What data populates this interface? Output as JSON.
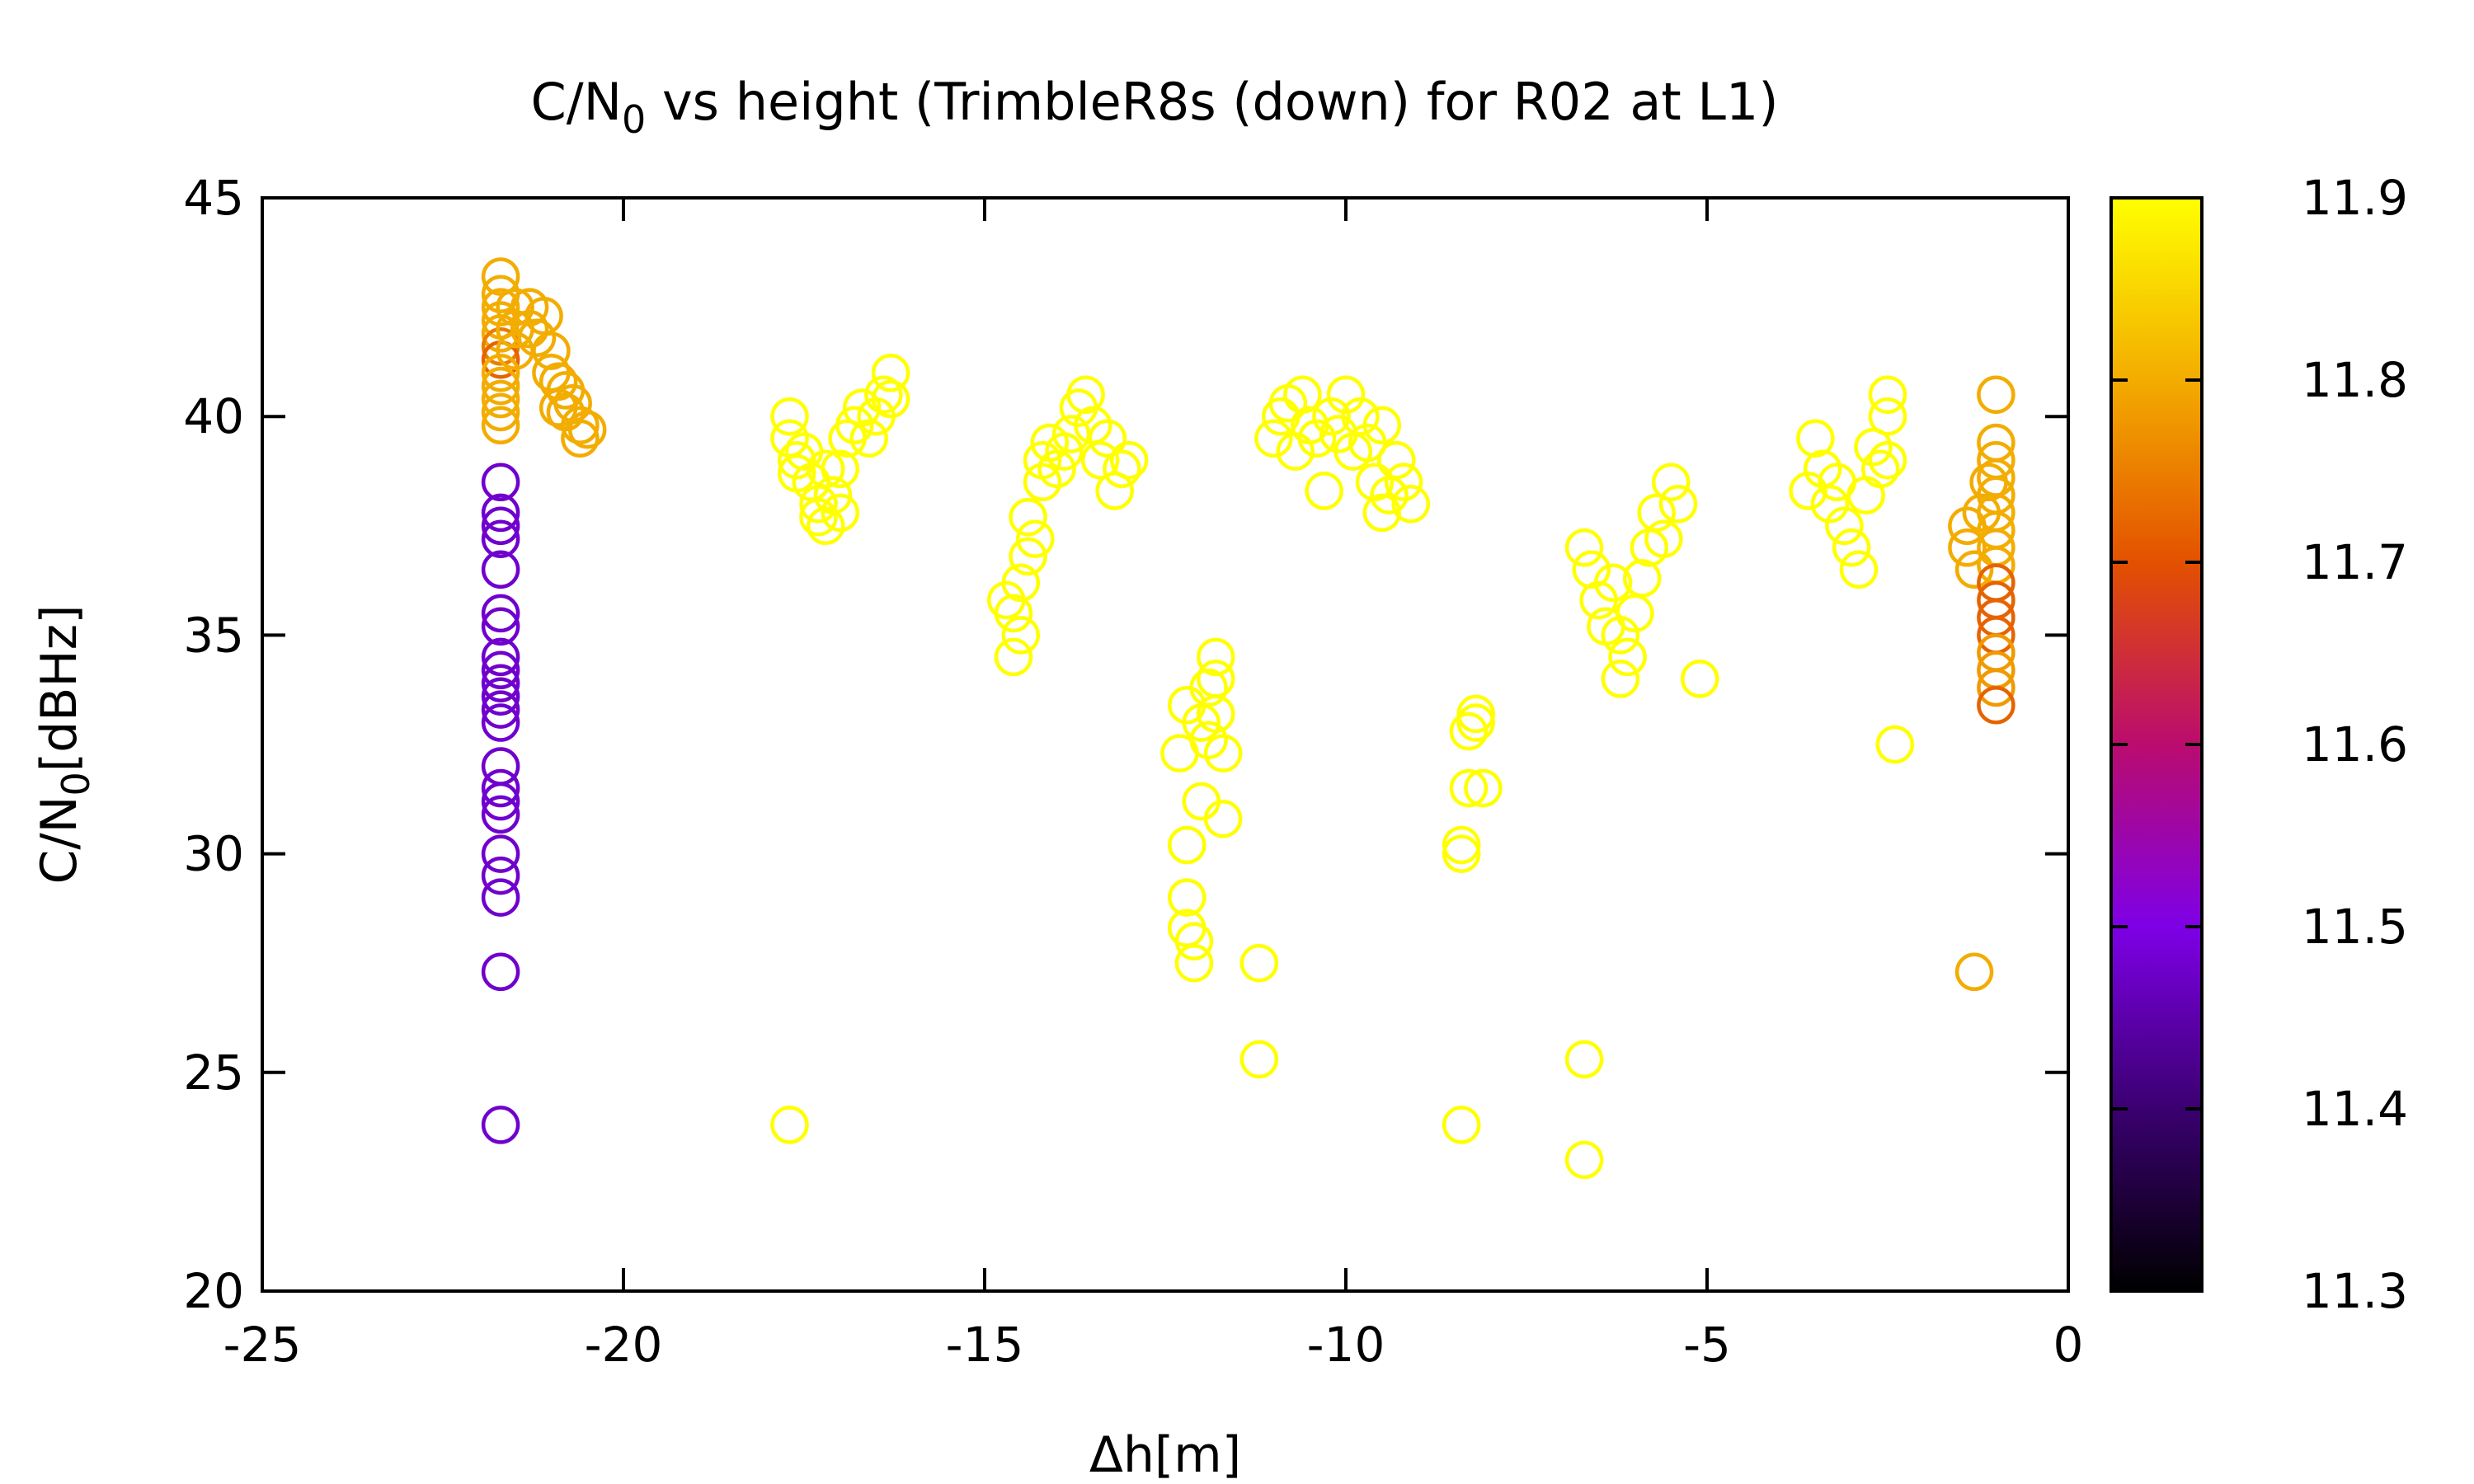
{
  "chart_data": {
    "type": "scatter",
    "title": "C/N0 vs height (TrimbleR8s (down) for R02 at L1)",
    "title_parts": {
      "before": "C/N",
      "sub": "0",
      "after": " vs height (TrimbleR8s (down) for R02 at L1)"
    },
    "xlabel": "Δh[m]",
    "ylabel": "C/N0[dBHz]",
    "ylabel_parts": {
      "before": "C/N",
      "sub": "0",
      "after": "[dBHz]"
    },
    "xlim": [
      -25,
      0
    ],
    "ylim": [
      20,
      45
    ],
    "xticks": [
      -25,
      -20,
      -15,
      -10,
      -5,
      0
    ],
    "yticks": [
      20,
      25,
      30,
      35,
      40,
      45
    ],
    "xtick_labels": [
      "-25",
      "-20",
      "-15",
      "-10",
      "-5",
      "0"
    ],
    "ytick_labels": [
      "20",
      "25",
      "30",
      "35",
      "40",
      "45"
    ],
    "colorbar": {
      "range": [
        11.3,
        11.9
      ],
      "ticks": [
        11.3,
        11.4,
        11.5,
        11.6,
        11.7,
        11.8,
        11.9
      ],
      "tick_labels": [
        "11.3",
        "11.4",
        "11.5",
        "11.6",
        "11.7",
        "11.8",
        "11.9"
      ],
      "colormap": "gnuplot",
      "colors": [
        "#000000",
        "#3a0070",
        "#7e00e6",
        "#ba0c6e",
        "#e35100",
        "#f3ac00",
        "#ffff00"
      ]
    },
    "marker": "open-circle",
    "grid": false,
    "legend": "none",
    "points": [
      [
        -21.7,
        43.2,
        11.8
      ],
      [
        -21.7,
        42.8,
        11.8
      ],
      [
        -21.7,
        42.5,
        11.8
      ],
      [
        -21.7,
        42.2,
        11.8
      ],
      [
        -21.7,
        41.9,
        11.8
      ],
      [
        -21.7,
        41.6,
        11.75
      ],
      [
        -21.7,
        41.3,
        11.72
      ],
      [
        -21.7,
        41.0,
        11.8
      ],
      [
        -21.7,
        40.7,
        11.8
      ],
      [
        -21.7,
        40.4,
        11.8
      ],
      [
        -21.7,
        40.1,
        11.8
      ],
      [
        -21.7,
        39.8,
        11.8
      ],
      [
        -21.5,
        42.5,
        11.8
      ],
      [
        -21.5,
        42.0,
        11.8
      ],
      [
        -21.5,
        41.5,
        11.8
      ],
      [
        -21.3,
        42.5,
        11.8
      ],
      [
        -21.3,
        42.0,
        11.8
      ],
      [
        -21.2,
        41.8,
        11.8
      ],
      [
        -21.1,
        42.3,
        11.8
      ],
      [
        -21.0,
        41.5,
        11.8
      ],
      [
        -21.0,
        41.0,
        11.8
      ],
      [
        -20.9,
        40.8,
        11.8
      ],
      [
        -20.9,
        40.2,
        11.8
      ],
      [
        -20.8,
        40.6,
        11.8
      ],
      [
        -20.8,
        40.1,
        11.8
      ],
      [
        -20.7,
        40.3,
        11.8
      ],
      [
        -20.6,
        39.8,
        11.8
      ],
      [
        -20.6,
        39.5,
        11.8
      ],
      [
        -20.5,
        39.7,
        11.8
      ],
      [
        -21.7,
        38.5,
        11.48
      ],
      [
        -21.7,
        37.8,
        11.48
      ],
      [
        -21.7,
        37.5,
        11.48
      ],
      [
        -21.7,
        37.2,
        11.48
      ],
      [
        -21.7,
        36.5,
        11.48
      ],
      [
        -21.7,
        35.5,
        11.48
      ],
      [
        -21.7,
        35.2,
        11.48
      ],
      [
        -21.7,
        34.5,
        11.48
      ],
      [
        -21.7,
        34.2,
        11.48
      ],
      [
        -21.7,
        33.9,
        11.48
      ],
      [
        -21.7,
        33.6,
        11.48
      ],
      [
        -21.7,
        33.3,
        11.48
      ],
      [
        -21.7,
        33.0,
        11.48
      ],
      [
        -21.7,
        32.0,
        11.48
      ],
      [
        -21.7,
        31.5,
        11.48
      ],
      [
        -21.7,
        31.2,
        11.48
      ],
      [
        -21.7,
        30.9,
        11.48
      ],
      [
        -21.7,
        30.0,
        11.48
      ],
      [
        -21.7,
        29.5,
        11.48
      ],
      [
        -21.7,
        29.0,
        11.48
      ],
      [
        -21.7,
        27.3,
        11.48
      ],
      [
        -21.7,
        23.8,
        11.48
      ],
      [
        -17.7,
        40.0,
        11.9
      ],
      [
        -17.7,
        39.5,
        11.9
      ],
      [
        -17.6,
        39.0,
        11.9
      ],
      [
        -17.6,
        38.7,
        11.9
      ],
      [
        -17.5,
        39.2,
        11.9
      ],
      [
        -17.4,
        38.5,
        11.9
      ],
      [
        -17.3,
        38.0,
        11.9
      ],
      [
        -17.3,
        37.7,
        11.9
      ],
      [
        -17.2,
        37.5,
        11.9
      ],
      [
        -17.2,
        38.8,
        11.9
      ],
      [
        -17.1,
        38.2,
        11.9
      ],
      [
        -17.0,
        37.8,
        11.9
      ],
      [
        -17.0,
        38.8,
        11.9
      ],
      [
        -16.9,
        39.5,
        11.9
      ],
      [
        -16.8,
        39.8,
        11.9
      ],
      [
        -16.7,
        40.2,
        11.9
      ],
      [
        -16.6,
        39.5,
        11.9
      ],
      [
        -16.5,
        40.0,
        11.9
      ],
      [
        -16.4,
        40.5,
        11.9
      ],
      [
        -16.3,
        41.0,
        11.9
      ],
      [
        -16.3,
        40.4,
        11.9
      ],
      [
        -17.7,
        23.8,
        11.9
      ],
      [
        -14.7,
        35.8,
        11.9
      ],
      [
        -14.6,
        35.5,
        11.9
      ],
      [
        -14.6,
        34.5,
        11.9
      ],
      [
        -14.5,
        35.0,
        11.9
      ],
      [
        -14.5,
        36.2,
        11.9
      ],
      [
        -14.4,
        36.8,
        11.9
      ],
      [
        -14.4,
        37.7,
        11.9
      ],
      [
        -14.3,
        37.2,
        11.9
      ],
      [
        -14.2,
        38.5,
        11.9
      ],
      [
        -14.2,
        39.0,
        11.9
      ],
      [
        -14.1,
        39.4,
        11.9
      ],
      [
        -14.0,
        38.8,
        11.9
      ],
      [
        -13.9,
        39.2,
        11.9
      ],
      [
        -13.8,
        39.6,
        11.9
      ],
      [
        -13.7,
        40.2,
        11.9
      ],
      [
        -13.6,
        40.5,
        11.9
      ],
      [
        -13.5,
        39.8,
        11.9
      ],
      [
        -13.4,
        39.0,
        11.9
      ],
      [
        -13.3,
        39.5,
        11.9
      ],
      [
        -13.2,
        38.3,
        11.9
      ],
      [
        -13.1,
        38.8,
        11.9
      ],
      [
        -13.0,
        39.0,
        11.9
      ],
      [
        -12.3,
        32.3,
        11.9
      ],
      [
        -12.2,
        33.4,
        11.9
      ],
      [
        -12.2,
        30.2,
        11.9
      ],
      [
        -12.2,
        29.0,
        11.9
      ],
      [
        -12.2,
        28.3,
        11.9
      ],
      [
        -12.1,
        27.5,
        11.9
      ],
      [
        -12.1,
        28.0,
        11.9
      ],
      [
        -12.0,
        33.0,
        11.9
      ],
      [
        -12.0,
        31.2,
        11.9
      ],
      [
        -11.9,
        32.6,
        11.9
      ],
      [
        -11.9,
        33.8,
        11.9
      ],
      [
        -11.8,
        34.5,
        11.9
      ],
      [
        -11.8,
        34.0,
        11.9
      ],
      [
        -11.8,
        33.2,
        11.9
      ],
      [
        -11.7,
        32.3,
        11.9
      ],
      [
        -11.7,
        30.8,
        11.9
      ],
      [
        -11.2,
        27.5,
        11.9
      ],
      [
        -11.2,
        25.3,
        11.9
      ],
      [
        -11.0,
        39.5,
        11.9
      ],
      [
        -10.9,
        40.0,
        11.9
      ],
      [
        -10.8,
        40.3,
        11.9
      ],
      [
        -10.7,
        39.2,
        11.9
      ],
      [
        -10.6,
        40.5,
        11.9
      ],
      [
        -10.5,
        39.8,
        11.9
      ],
      [
        -10.4,
        39.5,
        11.9
      ],
      [
        -10.3,
        38.3,
        11.9
      ],
      [
        -10.2,
        40.0,
        11.9
      ],
      [
        -10.1,
        39.6,
        11.9
      ],
      [
        -10.0,
        40.5,
        11.9
      ],
      [
        -9.9,
        39.2,
        11.9
      ],
      [
        -9.8,
        40.0,
        11.9
      ],
      [
        -9.7,
        39.4,
        11.9
      ],
      [
        -9.6,
        38.5,
        11.9
      ],
      [
        -9.5,
        37.8,
        11.9
      ],
      [
        -9.5,
        39.8,
        11.9
      ],
      [
        -9.4,
        38.2,
        11.9
      ],
      [
        -9.3,
        39.0,
        11.9
      ],
      [
        -9.2,
        38.5,
        11.9
      ],
      [
        -9.1,
        38.0,
        11.9
      ],
      [
        -8.4,
        30.2,
        11.9
      ],
      [
        -8.4,
        30.0,
        11.9
      ],
      [
        -8.3,
        31.5,
        11.9
      ],
      [
        -8.3,
        32.8,
        11.9
      ],
      [
        -8.2,
        33.2,
        11.9
      ],
      [
        -8.2,
        33.0,
        11.9
      ],
      [
        -8.1,
        31.5,
        11.9
      ],
      [
        -8.4,
        23.8,
        11.9
      ],
      [
        -6.7,
        37.0,
        11.9
      ],
      [
        -6.6,
        36.5,
        11.9
      ],
      [
        -6.5,
        35.8,
        11.9
      ],
      [
        -6.4,
        35.2,
        11.9
      ],
      [
        -6.3,
        36.2,
        11.9
      ],
      [
        -6.2,
        35.0,
        11.9
      ],
      [
        -6.2,
        34.0,
        11.9
      ],
      [
        -6.1,
        34.5,
        11.9
      ],
      [
        -6.0,
        35.5,
        11.9
      ],
      [
        -5.9,
        36.3,
        11.9
      ],
      [
        -5.8,
        37.0,
        11.9
      ],
      [
        -5.7,
        37.8,
        11.9
      ],
      [
        -5.6,
        37.2,
        11.9
      ],
      [
        -5.5,
        38.5,
        11.9
      ],
      [
        -5.4,
        38.0,
        11.9
      ],
      [
        -5.1,
        34.0,
        11.9
      ],
      [
        -6.7,
        25.3,
        11.9
      ],
      [
        -6.7,
        23.0,
        11.9
      ],
      [
        -3.6,
        38.3,
        11.9
      ],
      [
        -3.5,
        39.5,
        11.9
      ],
      [
        -3.4,
        38.8,
        11.9
      ],
      [
        -3.3,
        38.0,
        11.9
      ],
      [
        -3.2,
        38.5,
        11.9
      ],
      [
        -3.1,
        37.5,
        11.9
      ],
      [
        -3.0,
        37.0,
        11.9
      ],
      [
        -2.9,
        36.5,
        11.9
      ],
      [
        -2.8,
        38.2,
        11.9
      ],
      [
        -2.7,
        39.3,
        11.9
      ],
      [
        -2.6,
        38.8,
        11.9
      ],
      [
        -2.5,
        39.0,
        11.9
      ],
      [
        -2.5,
        40.5,
        11.9
      ],
      [
        -2.5,
        40.0,
        11.9
      ],
      [
        -2.4,
        32.5,
        11.9
      ],
      [
        -1.4,
        37.5,
        11.8
      ],
      [
        -1.4,
        37.0,
        11.8
      ],
      [
        -1.3,
        36.5,
        11.8
      ],
      [
        -1.3,
        27.3,
        11.8
      ],
      [
        -1.2,
        37.8,
        11.8
      ],
      [
        -1.1,
        38.5,
        11.8
      ],
      [
        -1.0,
        40.5,
        11.8
      ],
      [
        -1.0,
        39.4,
        11.8
      ],
      [
        -1.0,
        39.0,
        11.8
      ],
      [
        -1.0,
        38.6,
        11.8
      ],
      [
        -1.0,
        38.2,
        11.8
      ],
      [
        -1.0,
        37.8,
        11.8
      ],
      [
        -1.0,
        37.4,
        11.8
      ],
      [
        -1.0,
        37.0,
        11.8
      ],
      [
        -1.0,
        36.6,
        11.8
      ],
      [
        -1.0,
        36.2,
        11.72
      ],
      [
        -1.0,
        35.8,
        11.72
      ],
      [
        -1.0,
        35.4,
        11.72
      ],
      [
        -1.0,
        35.0,
        11.72
      ],
      [
        -1.0,
        34.6,
        11.78
      ],
      [
        -1.0,
        34.2,
        11.78
      ],
      [
        -1.0,
        33.8,
        11.78
      ],
      [
        -1.0,
        33.4,
        11.72
      ]
    ]
  }
}
